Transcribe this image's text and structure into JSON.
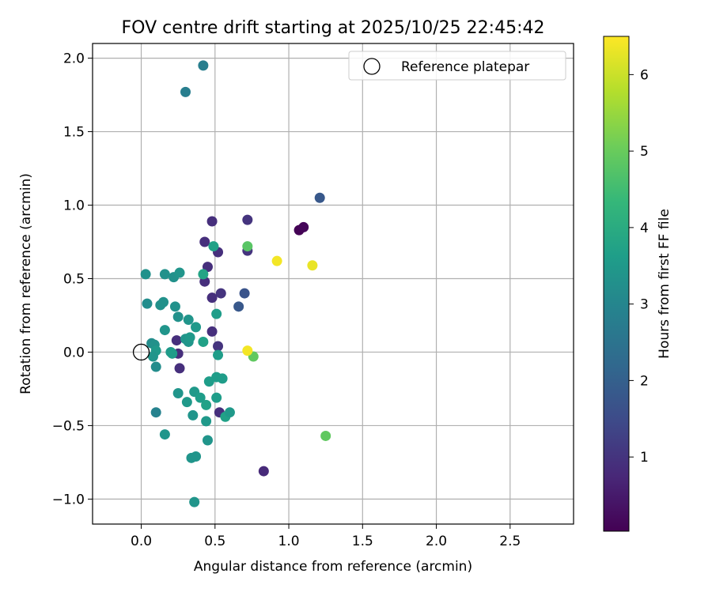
{
  "chart_data": {
    "type": "scatter",
    "title": "FOV centre drift starting at 2025/10/25 22:45:42",
    "xlabel": "Angular distance from reference (arcmin)",
    "ylabel": "Rotation from reference (arcmin)",
    "xlim": [
      -0.33,
      2.93
    ],
    "ylim": [
      -1.17,
      2.1
    ],
    "xticks": [
      0.0,
      0.5,
      1.0,
      1.5,
      2.0,
      2.5
    ],
    "xtick_labels": [
      "0.0",
      "0.5",
      "1.0",
      "1.5",
      "2.0",
      "2.5"
    ],
    "yticks": [
      -1.0,
      -0.5,
      0.0,
      0.5,
      1.0,
      1.5,
      2.0
    ],
    "ytick_labels": [
      "−1.0",
      "−0.5",
      "0.0",
      "0.5",
      "1.0",
      "1.5",
      "2.0"
    ],
    "grid": true,
    "legend": {
      "position": "top-right",
      "entries": [
        "Reference platepar"
      ]
    },
    "reference_point": {
      "x": 0.0,
      "y": 0.0,
      "marker": "open-circle"
    },
    "colorbar": {
      "label": "Hours from first FF file",
      "colormap": "viridis",
      "range": [
        0.03,
        6.5
      ],
      "ticks": [
        1,
        2,
        3,
        4,
        5,
        6
      ],
      "tick_labels": [
        "1",
        "2",
        "3",
        "4",
        "5",
        "6"
      ]
    },
    "points": [
      {
        "x": 1.07,
        "y": 0.83,
        "c": 0.05
      },
      {
        "x": 1.1,
        "y": 0.85,
        "c": 0.1
      },
      {
        "x": 0.83,
        "y": -0.81,
        "c": 0.8
      },
      {
        "x": 0.72,
        "y": 0.9,
        "c": 1.0
      },
      {
        "x": 0.72,
        "y": 0.69,
        "c": 1.0
      },
      {
        "x": 0.48,
        "y": 0.89,
        "c": 0.9
      },
      {
        "x": 0.43,
        "y": 0.75,
        "c": 0.9
      },
      {
        "x": 0.52,
        "y": 0.68,
        "c": 0.9
      },
      {
        "x": 0.45,
        "y": 0.58,
        "c": 0.9
      },
      {
        "x": 0.43,
        "y": 0.48,
        "c": 0.9
      },
      {
        "x": 0.48,
        "y": 0.37,
        "c": 0.9
      },
      {
        "x": 0.54,
        "y": 0.4,
        "c": 1.0
      },
      {
        "x": 0.48,
        "y": 0.14,
        "c": 0.9
      },
      {
        "x": 0.52,
        "y": 0.04,
        "c": 1.0
      },
      {
        "x": 0.24,
        "y": 0.08,
        "c": 0.9
      },
      {
        "x": 0.25,
        "y": -0.01,
        "c": 0.9
      },
      {
        "x": 0.26,
        "y": -0.11,
        "c": 0.9
      },
      {
        "x": 0.53,
        "y": -0.41,
        "c": 0.9
      },
      {
        "x": 0.7,
        "y": 0.4,
        "c": 1.7
      },
      {
        "x": 0.66,
        "y": 0.31,
        "c": 1.8
      },
      {
        "x": 1.21,
        "y": 1.05,
        "c": 1.8
      },
      {
        "x": 0.42,
        "y": 1.95,
        "c": 2.8
      },
      {
        "x": 0.3,
        "y": 1.77,
        "c": 2.8
      },
      {
        "x": 0.1,
        "y": -0.41,
        "c": 2.9
      },
      {
        "x": 0.1,
        "y": -0.1,
        "c": 3.2
      },
      {
        "x": 0.03,
        "y": 0.53,
        "c": 3.3
      },
      {
        "x": 0.04,
        "y": 0.33,
        "c": 3.2
      },
      {
        "x": 0.07,
        "y": 0.06,
        "c": 3.2
      },
      {
        "x": 0.09,
        "y": 0.05,
        "c": 3.3
      },
      {
        "x": 0.1,
        "y": 0.01,
        "c": 3.5
      },
      {
        "x": 0.08,
        "y": -0.03,
        "c": 3.4
      },
      {
        "x": 0.13,
        "y": 0.32,
        "c": 3.3
      },
      {
        "x": 0.15,
        "y": 0.34,
        "c": 3.3
      },
      {
        "x": 0.16,
        "y": 0.53,
        "c": 3.3
      },
      {
        "x": 0.22,
        "y": 0.51,
        "c": 3.3
      },
      {
        "x": 0.26,
        "y": 0.54,
        "c": 3.4
      },
      {
        "x": 0.16,
        "y": 0.15,
        "c": 3.4
      },
      {
        "x": 0.23,
        "y": 0.31,
        "c": 3.3
      },
      {
        "x": 0.25,
        "y": 0.24,
        "c": 3.3
      },
      {
        "x": 0.32,
        "y": 0.22,
        "c": 3.4
      },
      {
        "x": 0.37,
        "y": 0.17,
        "c": 3.5
      },
      {
        "x": 0.3,
        "y": 0.09,
        "c": 3.4
      },
      {
        "x": 0.32,
        "y": 0.07,
        "c": 3.4
      },
      {
        "x": 0.33,
        "y": 0.1,
        "c": 3.5
      },
      {
        "x": 0.2,
        "y": 0.0,
        "c": 3.5
      },
      {
        "x": 0.21,
        "y": -0.01,
        "c": 3.6
      },
      {
        "x": 0.42,
        "y": 0.07,
        "c": 3.7
      },
      {
        "x": 0.42,
        "y": 0.53,
        "c": 3.8
      },
      {
        "x": 0.49,
        "y": 0.72,
        "c": 3.7
      },
      {
        "x": 0.51,
        "y": 0.26,
        "c": 3.6
      },
      {
        "x": 0.52,
        "y": -0.02,
        "c": 3.6
      },
      {
        "x": 0.51,
        "y": -0.17,
        "c": 3.6
      },
      {
        "x": 0.55,
        "y": -0.18,
        "c": 3.6
      },
      {
        "x": 0.46,
        "y": -0.2,
        "c": 3.6
      },
      {
        "x": 0.25,
        "y": -0.28,
        "c": 3.4
      },
      {
        "x": 0.36,
        "y": -0.27,
        "c": 3.5
      },
      {
        "x": 0.31,
        "y": -0.34,
        "c": 3.5
      },
      {
        "x": 0.4,
        "y": -0.31,
        "c": 3.6
      },
      {
        "x": 0.44,
        "y": -0.36,
        "c": 3.7
      },
      {
        "x": 0.51,
        "y": -0.31,
        "c": 3.6
      },
      {
        "x": 0.35,
        "y": -0.43,
        "c": 3.4
      },
      {
        "x": 0.44,
        "y": -0.47,
        "c": 3.5
      },
      {
        "x": 0.57,
        "y": -0.44,
        "c": 3.7
      },
      {
        "x": 0.6,
        "y": -0.41,
        "c": 3.5
      },
      {
        "x": 0.16,
        "y": -0.56,
        "c": 3.4
      },
      {
        "x": 0.45,
        "y": -0.6,
        "c": 3.4
      },
      {
        "x": 0.34,
        "y": -0.72,
        "c": 3.4
      },
      {
        "x": 0.37,
        "y": -0.71,
        "c": 3.4
      },
      {
        "x": 0.36,
        "y": -1.02,
        "c": 3.4
      },
      {
        "x": 0.72,
        "y": 0.72,
        "c": 4.8
      },
      {
        "x": 0.76,
        "y": -0.03,
        "c": 4.9
      },
      {
        "x": 1.25,
        "y": -0.57,
        "c": 4.9
      },
      {
        "x": 0.72,
        "y": 0.01,
        "c": 6.4
      },
      {
        "x": 0.92,
        "y": 0.62,
        "c": 6.4
      },
      {
        "x": 1.16,
        "y": 0.59,
        "c": 6.3
      }
    ]
  }
}
